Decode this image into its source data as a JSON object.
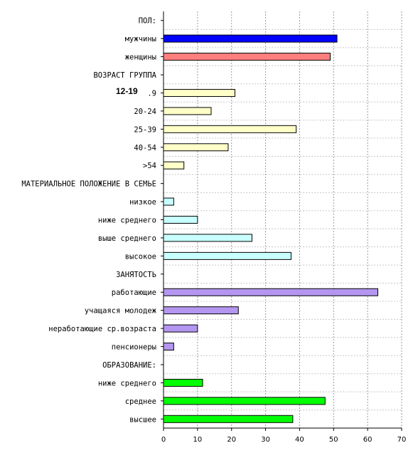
{
  "chart_data": {
    "type": "bar",
    "orientation": "horizontal",
    "xlim": [
      0,
      70
    ],
    "x_ticks": [
      0,
      10,
      20,
      30,
      40,
      50,
      60,
      70
    ],
    "grid": "vertical dashed",
    "rows": [
      {
        "label": "ПОЛ:",
        "value": null,
        "color": null
      },
      {
        "label": "мужчины",
        "value": 51,
        "color": "#0000ff"
      },
      {
        "label": "женщины",
        "value": 49,
        "color": "#ff7f7f"
      },
      {
        "label": "ВОЗРАСТ ГРУППА",
        "value": null,
        "color": null
      },
      {
        "label": ".9",
        "value": 21,
        "color": "#ffffc8"
      },
      {
        "label": "20-24",
        "value": 14,
        "color": "#ffffc8"
      },
      {
        "label": "25-39",
        "value": 39,
        "color": "#ffffc8"
      },
      {
        "label": "40-54",
        "value": 19,
        "color": "#ffffc8"
      },
      {
        "label": ">54",
        "value": 6,
        "color": "#ffffc8"
      },
      {
        "label": "МАТЕРИАЛЬНОЕ ПОЛОЖЕНИЕ В СЕМЬЕ",
        "value": null,
        "color": null
      },
      {
        "label": "низкое",
        "value": 3,
        "color": "#c8ffff"
      },
      {
        "label": "ниже среднего",
        "value": 10,
        "color": "#c8ffff"
      },
      {
        "label": "выше среднего",
        "value": 26,
        "color": "#c8ffff"
      },
      {
        "label": "высокое",
        "value": 37.5,
        "color": "#c8ffff"
      },
      {
        "label": "ЗАНЯТОСТЬ",
        "value": null,
        "color": null
      },
      {
        "label": "работающие",
        "value": 63,
        "color": "#b496f0"
      },
      {
        "label": "учащаяся молодеж",
        "value": 22,
        "color": "#b496f0"
      },
      {
        "label": "неработающие ср.возраста",
        "value": 10,
        "color": "#b496f0"
      },
      {
        "label": "пенсионеры",
        "value": 3,
        "color": "#b496f0"
      },
      {
        "label": "ОБРАЗОВАНИЕ:",
        "value": null,
        "color": null
      },
      {
        "label": "ниже среднего",
        "value": 11.5,
        "color": "#00ff00"
      },
      {
        "label": "среднее",
        "value": 47.5,
        "color": "#00ff00"
      },
      {
        "label": "высшее",
        "value": 38,
        "color": "#00ff00"
      }
    ],
    "overlay_label": "12-19"
  }
}
